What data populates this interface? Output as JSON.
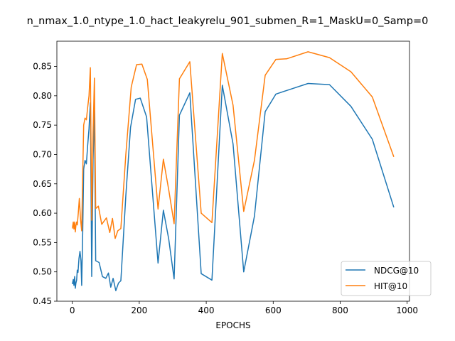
{
  "chart_data": {
    "type": "line",
    "title": "n_nmax_1.0_ntype_1.0_hact_leakyrelu_901_submen_R=1_MaskU=0_Samp=0",
    "xlabel": "EPOCHS",
    "ylabel": "",
    "xlim": [
      -46,
      1007
    ],
    "ylim": [
      0.45,
      0.893
    ],
    "xticks": [
      0,
      200,
      400,
      600,
      800,
      1000
    ],
    "xtick_labels": [
      "0",
      "200",
      "400",
      "600",
      "800",
      "1000"
    ],
    "yticks": [
      0.45,
      0.5,
      0.55,
      0.6,
      0.65,
      0.7,
      0.75,
      0.8,
      0.85
    ],
    "ytick_labels": [
      "0.45",
      "0.50",
      "0.55",
      "0.60",
      "0.65",
      "0.70",
      "0.75",
      "0.80",
      "0.85"
    ],
    "grid": false,
    "legend_position": "lower-right",
    "series": [
      {
        "name": "NDCG@10",
        "color": "#1f77b4",
        "points": [
          [
            0,
            0.479
          ],
          [
            3,
            0.487
          ],
          [
            5,
            0.477
          ],
          [
            7,
            0.492
          ],
          [
            9,
            0.472
          ],
          [
            11,
            0.481
          ],
          [
            13,
            0.486
          ],
          [
            15,
            0.503
          ],
          [
            17,
            0.499
          ],
          [
            20,
            0.523
          ],
          [
            23,
            0.535
          ],
          [
            26,
            0.519
          ],
          [
            28,
            0.477
          ],
          [
            31,
            0.565
          ],
          [
            34,
            0.675
          ],
          [
            38,
            0.69
          ],
          [
            42,
            0.684
          ],
          [
            46,
            0.715
          ],
          [
            50,
            0.744
          ],
          [
            54,
            0.788
          ],
          [
            58,
            0.492
          ],
          [
            62,
            0.691
          ],
          [
            66,
            0.775
          ],
          [
            70,
            0.519
          ],
          [
            80,
            0.516
          ],
          [
            90,
            0.492
          ],
          [
            100,
            0.489
          ],
          [
            108,
            0.498
          ],
          [
            115,
            0.474
          ],
          [
            122,
            0.489
          ],
          [
            130,
            0.468
          ],
          [
            138,
            0.481
          ],
          [
            145,
            0.485
          ],
          [
            160,
            0.63
          ],
          [
            174,
            0.746
          ],
          [
            189,
            0.794
          ],
          [
            203,
            0.796
          ],
          [
            222,
            0.764
          ],
          [
            256,
            0.515
          ],
          [
            272,
            0.605
          ],
          [
            288,
            0.556
          ],
          [
            304,
            0.488
          ],
          [
            320,
            0.767
          ],
          [
            351,
            0.805
          ],
          [
            385,
            0.497
          ],
          [
            417,
            0.486
          ],
          [
            448,
            0.818
          ],
          [
            480,
            0.718
          ],
          [
            512,
            0.5
          ],
          [
            544,
            0.595
          ],
          [
            576,
            0.773
          ],
          [
            608,
            0.803
          ],
          [
            640,
            0.809
          ],
          [
            704,
            0.821
          ],
          [
            768,
            0.819
          ],
          [
            832,
            0.782
          ],
          [
            896,
            0.726
          ],
          [
            960,
            0.61
          ]
        ]
      },
      {
        "name": "HIT@10",
        "color": "#ff7f0e",
        "points": [
          [
            0,
            0.574
          ],
          [
            3,
            0.585
          ],
          [
            5,
            0.573
          ],
          [
            7,
            0.585
          ],
          [
            9,
            0.568
          ],
          [
            11,
            0.579
          ],
          [
            13,
            0.585
          ],
          [
            15,
            0.58
          ],
          [
            18,
            0.6
          ],
          [
            21,
            0.625
          ],
          [
            25,
            0.588
          ],
          [
            28,
            0.57
          ],
          [
            31,
            0.662
          ],
          [
            34,
            0.75
          ],
          [
            38,
            0.762
          ],
          [
            42,
            0.759
          ],
          [
            46,
            0.78
          ],
          [
            50,
            0.8
          ],
          [
            54,
            0.848
          ],
          [
            58,
            0.588
          ],
          [
            62,
            0.737
          ],
          [
            66,
            0.83
          ],
          [
            70,
            0.608
          ],
          [
            78,
            0.612
          ],
          [
            88,
            0.581
          ],
          [
            102,
            0.592
          ],
          [
            112,
            0.567
          ],
          [
            120,
            0.591
          ],
          [
            128,
            0.557
          ],
          [
            136,
            0.57
          ],
          [
            145,
            0.574
          ],
          [
            160,
            0.7
          ],
          [
            176,
            0.815
          ],
          [
            192,
            0.853
          ],
          [
            208,
            0.854
          ],
          [
            224,
            0.828
          ],
          [
            256,
            0.607
          ],
          [
            272,
            0.692
          ],
          [
            288,
            0.64
          ],
          [
            304,
            0.582
          ],
          [
            320,
            0.829
          ],
          [
            351,
            0.858
          ],
          [
            385,
            0.6
          ],
          [
            417,
            0.584
          ],
          [
            448,
            0.872
          ],
          [
            480,
            0.784
          ],
          [
            512,
            0.603
          ],
          [
            544,
            0.69
          ],
          [
            576,
            0.835
          ],
          [
            608,
            0.862
          ],
          [
            640,
            0.863
          ],
          [
            704,
            0.875
          ],
          [
            768,
            0.865
          ],
          [
            832,
            0.841
          ],
          [
            896,
            0.798
          ],
          [
            960,
            0.696
          ]
        ]
      }
    ]
  }
}
